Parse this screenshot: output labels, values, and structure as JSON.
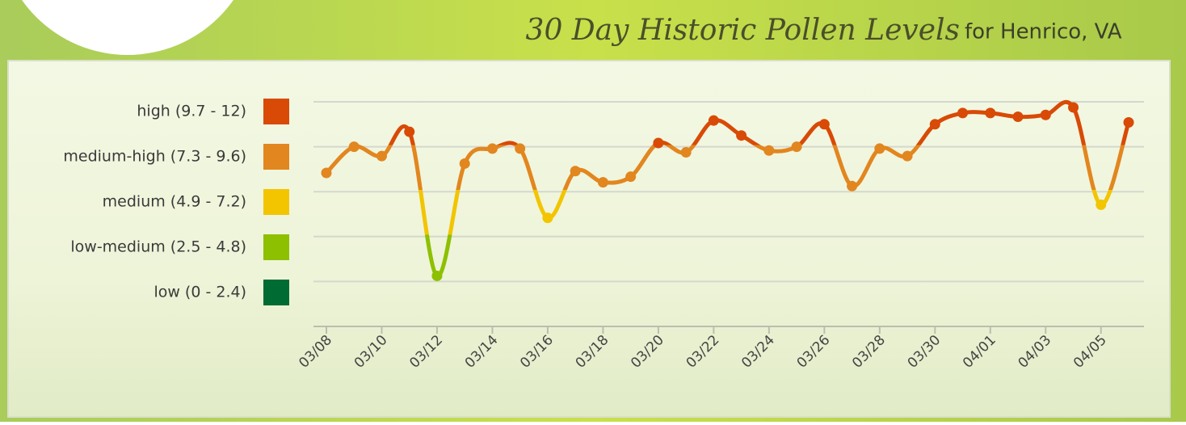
{
  "chart_data": {
    "type": "line",
    "title": "30 Day Historic Pollen Levels",
    "subtitle": "for Henrico, VA",
    "categories": [
      "03/08",
      null,
      "03/10",
      null,
      "03/12",
      null,
      "03/14",
      null,
      "03/16",
      null,
      "03/18",
      null,
      "03/20",
      null,
      "03/22",
      null,
      "03/24",
      null,
      "03/26",
      null,
      "03/28",
      null,
      "03/30",
      null,
      "04/01",
      null,
      "04/03",
      null,
      "04/05",
      null
    ],
    "values": [
      8.2,
      9.6,
      9.1,
      10.4,
      2.7,
      8.7,
      9.5,
      9.5,
      5.8,
      8.3,
      7.7,
      8.0,
      9.8,
      9.3,
      11.0,
      10.2,
      9.4,
      9.6,
      10.8,
      7.5,
      9.5,
      9.1,
      10.8,
      11.4,
      11.4,
      11.2,
      11.3,
      11.7,
      6.5,
      10.9
    ],
    "ylim": [
      0,
      12
    ],
    "yticks": [
      0,
      2.4,
      4.8,
      7.2,
      9.6,
      12
    ],
    "grid": true,
    "legend": "left",
    "levels": [
      {
        "label": "high (9.7 - 12)",
        "min": 9.7,
        "color": "#d84a06"
      },
      {
        "label": "medium-high (7.3 - 9.6)",
        "min": 7.3,
        "color": "#e2861f"
      },
      {
        "label": "medium (4.9 - 7.2)",
        "min": 4.9,
        "color": "#f2c500"
      },
      {
        "label": "low-medium (2.5 - 4.8)",
        "min": 2.5,
        "color": "#8dc000"
      },
      {
        "label": "low (0 - 2.4)",
        "min": 0,
        "color": "#006b32"
      }
    ]
  }
}
